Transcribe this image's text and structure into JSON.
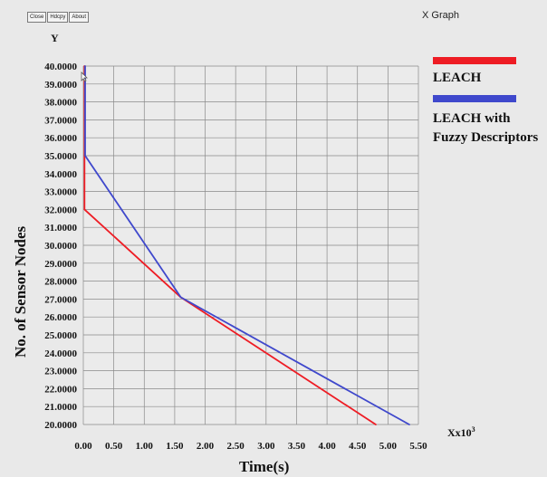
{
  "window": {
    "title": "X Graph",
    "buttons": [
      {
        "label": "Close"
      },
      {
        "label": "Hdcpy"
      },
      {
        "label": "About"
      }
    ]
  },
  "chart_data": {
    "type": "line",
    "title": "",
    "xlabel": "Time(s)",
    "x_unit_base": "Xx10",
    "x_unit_exp": "3",
    "ylabel": "No. of Sensor Nodes",
    "y_axis_letter": "Y",
    "xlim": [
      0,
      5.5
    ],
    "ylim": [
      20,
      40
    ],
    "x_ticks": [
      "0.00",
      "0.50",
      "1.00",
      "1.50",
      "2.00",
      "2.50",
      "3.00",
      "3.50",
      "4.00",
      "4.50",
      "5.00",
      "5.50"
    ],
    "y_ticks": [
      "20.0000",
      "21.0000",
      "22.0000",
      "23.0000",
      "24.0000",
      "25.0000",
      "26.0000",
      "27.0000",
      "28.0000",
      "29.0000",
      "30.0000",
      "31.0000",
      "32.0000",
      "33.0000",
      "34.0000",
      "35.0000",
      "36.0000",
      "37.0000",
      "38.0000",
      "39.0000",
      "40.0000"
    ],
    "grid": true,
    "legend_position": "right",
    "series": [
      {
        "name": "LEACH",
        "color": "#ee1c24",
        "x": [
          0.02,
          0.02,
          1.6,
          4.8
        ],
        "y": [
          40,
          32,
          27.1,
          20
        ]
      },
      {
        "name": "LEACH with Fuzzy Descriptors",
        "color": "#3f48cc",
        "x": [
          0.03,
          0.03,
          1.6,
          5.35
        ],
        "y": [
          40,
          35,
          27.1,
          20
        ]
      }
    ],
    "legend_labels": [
      "LEACH",
      "LEACH with",
      "Fuzzy Descriptors"
    ]
  }
}
